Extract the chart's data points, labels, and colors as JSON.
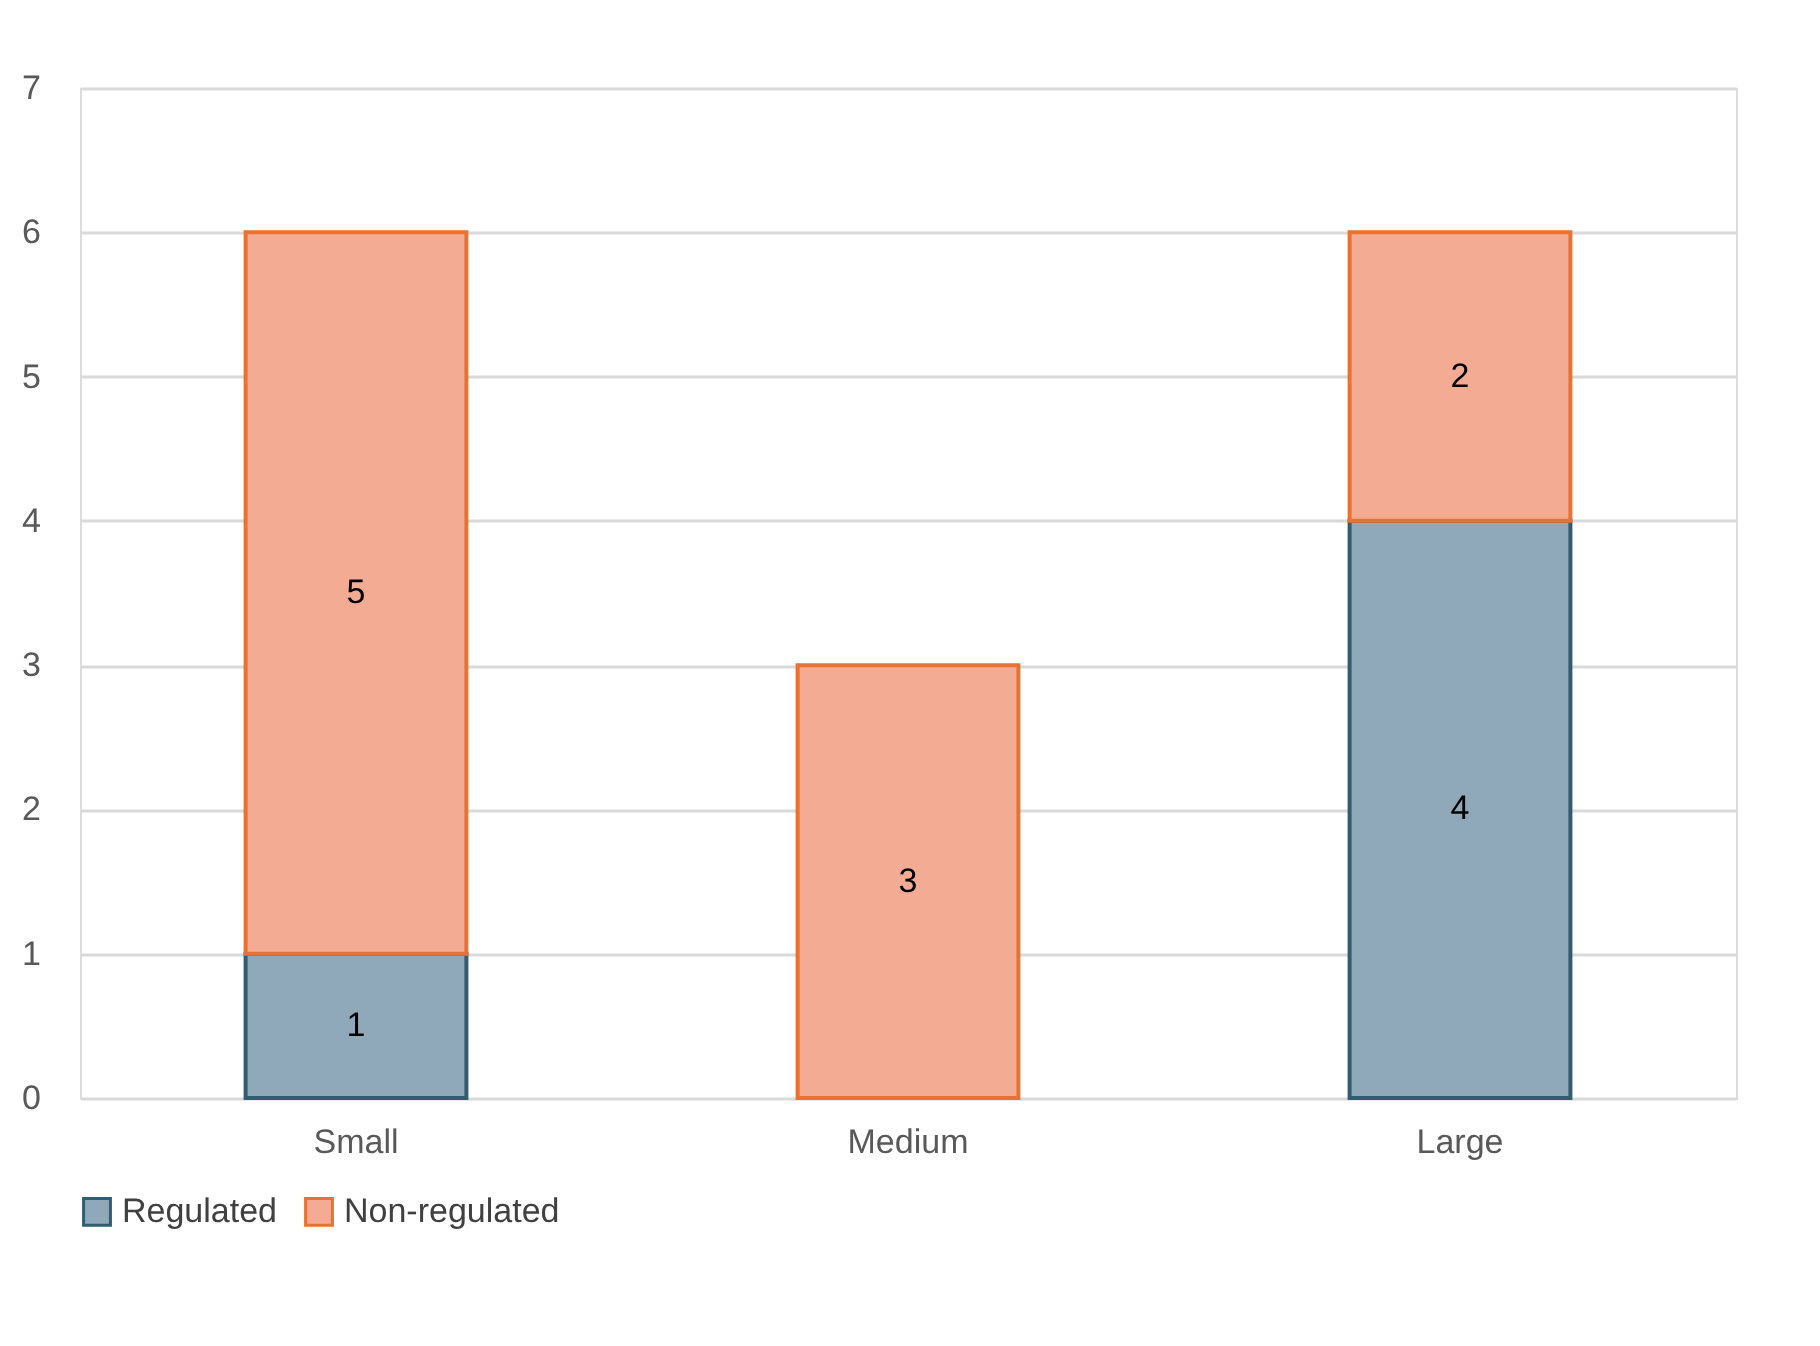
{
  "chart_data": {
    "type": "bar",
    "stacked": true,
    "categories": [
      "Small",
      "Medium",
      "Large"
    ],
    "series": [
      {
        "name": "Regulated",
        "color": "#8fa8ba",
        "values": [
          1,
          0,
          4
        ],
        "value_labels": [
          "1",
          null,
          "4"
        ]
      },
      {
        "name": "Non-regulated",
        "color": "#f3ac93",
        "values": [
          5,
          3,
          2
        ],
        "value_labels": [
          "5",
          "3",
          "2"
        ]
      }
    ],
    "ylim": [
      0,
      7
    ],
    "yticks": [
      0,
      1,
      2,
      3,
      4,
      5,
      6,
      7
    ],
    "grid": "y",
    "legend": "bottom"
  }
}
